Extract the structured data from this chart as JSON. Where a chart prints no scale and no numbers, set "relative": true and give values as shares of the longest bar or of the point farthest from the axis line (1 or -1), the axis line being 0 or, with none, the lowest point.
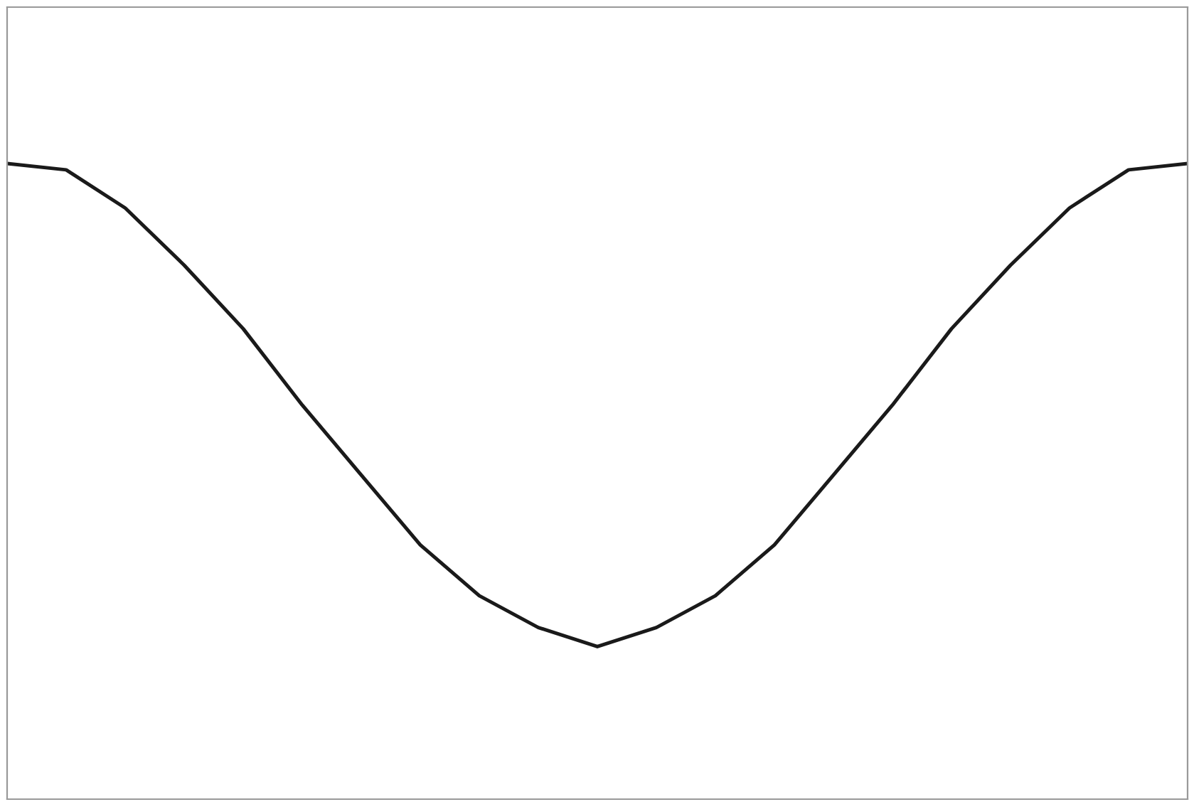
{
  "chart_data": {
    "type": "line",
    "relative": true,
    "categories": [
      null,
      null,
      null,
      null,
      null,
      null,
      null,
      null,
      null,
      null,
      null,
      null,
      null,
      null,
      null,
      null,
      null,
      null,
      null,
      null,
      null
    ],
    "series": [
      {
        "color": "#1a1a1a",
        "values": [
          1.0,
          0.99,
          0.93,
          0.84,
          0.74,
          0.62,
          0.51,
          0.4,
          0.32,
          0.27,
          0.24,
          0.27,
          0.32,
          0.4,
          0.51,
          0.62,
          0.74,
          0.84,
          0.93,
          0.99,
          1.0
        ]
      }
    ],
    "grid": false,
    "legend": false,
    "marker": "none",
    "line_style": "solid"
  }
}
